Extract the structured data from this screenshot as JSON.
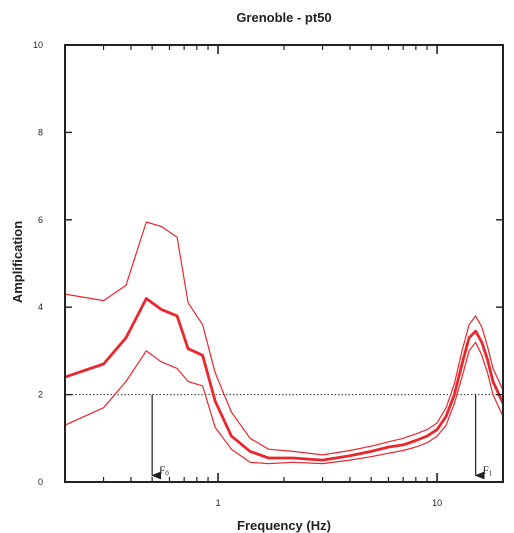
{
  "chart_data": {
    "type": "line",
    "title": "Grenoble - pt50",
    "xlabel": "Frequency (Hz)",
    "ylabel": "Amplification",
    "x_scale": "log",
    "xlim": [
      0.2,
      20
    ],
    "ylim": [
      0,
      10
    ],
    "x_ticks": [
      {
        "value": 1,
        "label": "1"
      },
      {
        "value": 10,
        "label": "10"
      }
    ],
    "y_ticks": [
      {
        "value": 0,
        "label": "0"
      },
      {
        "value": 2,
        "label": "2"
      },
      {
        "value": 4,
        "label": "4"
      },
      {
        "value": 6,
        "label": "6"
      },
      {
        "value": 8,
        "label": "8"
      },
      {
        "value": 10,
        "label": "10"
      }
    ],
    "grid": false,
    "reference_line": {
      "y": 2,
      "style": "dotted"
    },
    "colors": {
      "series": "#e8272e",
      "axis": "#222222"
    },
    "series": [
      {
        "role": "mean",
        "x": [
          0.2,
          0.3,
          0.38,
          0.47,
          0.55,
          0.65,
          0.73,
          0.85,
          0.97,
          1.15,
          1.4,
          1.7,
          2.2,
          3,
          4,
          5,
          6,
          7,
          8,
          9,
          10,
          11,
          12,
          13,
          14,
          15,
          16,
          17,
          18,
          20
        ],
        "y": [
          2.4,
          2.7,
          3.3,
          4.2,
          3.95,
          3.8,
          3.05,
          2.9,
          1.85,
          1.05,
          0.7,
          0.55,
          0.55,
          0.5,
          0.6,
          0.7,
          0.8,
          0.85,
          0.95,
          1.05,
          1.2,
          1.5,
          2.0,
          2.7,
          3.3,
          3.45,
          3.2,
          2.8,
          2.3,
          1.8
        ]
      },
      {
        "role": "upper",
        "x": [
          0.2,
          0.3,
          0.38,
          0.47,
          0.55,
          0.65,
          0.73,
          0.85,
          0.97,
          1.15,
          1.4,
          1.7,
          2.2,
          3,
          4,
          5,
          6,
          7,
          8,
          9,
          10,
          11,
          12,
          13,
          14,
          15,
          16,
          17,
          18,
          20
        ],
        "y": [
          4.3,
          4.15,
          4.5,
          5.95,
          5.85,
          5.6,
          4.1,
          3.6,
          2.5,
          1.6,
          1.0,
          0.75,
          0.7,
          0.62,
          0.72,
          0.82,
          0.92,
          1.0,
          1.1,
          1.2,
          1.35,
          1.7,
          2.25,
          3.0,
          3.6,
          3.8,
          3.55,
          3.1,
          2.6,
          2.1
        ]
      },
      {
        "role": "lower",
        "x": [
          0.2,
          0.3,
          0.38,
          0.47,
          0.55,
          0.65,
          0.73,
          0.85,
          0.97,
          1.15,
          1.4,
          1.7,
          2.2,
          3,
          4,
          5,
          6,
          7,
          8,
          9,
          10,
          11,
          12,
          13,
          14,
          15,
          16,
          17,
          18,
          20
        ],
        "y": [
          1.3,
          1.7,
          2.3,
          3.0,
          2.75,
          2.6,
          2.3,
          2.2,
          1.25,
          0.75,
          0.45,
          0.42,
          0.45,
          0.42,
          0.5,
          0.58,
          0.66,
          0.72,
          0.8,
          0.9,
          1.05,
          1.3,
          1.8,
          2.4,
          3.0,
          3.2,
          2.9,
          2.5,
          2.0,
          1.5
        ]
      }
    ],
    "annotations": [
      {
        "label": "F",
        "subscript": "0",
        "x": 0.5,
        "y_from": 2,
        "y_to": 0.15
      },
      {
        "label": "F",
        "subscript": "1",
        "x": 15,
        "y_from": 2,
        "y_to": 0.15
      }
    ]
  }
}
